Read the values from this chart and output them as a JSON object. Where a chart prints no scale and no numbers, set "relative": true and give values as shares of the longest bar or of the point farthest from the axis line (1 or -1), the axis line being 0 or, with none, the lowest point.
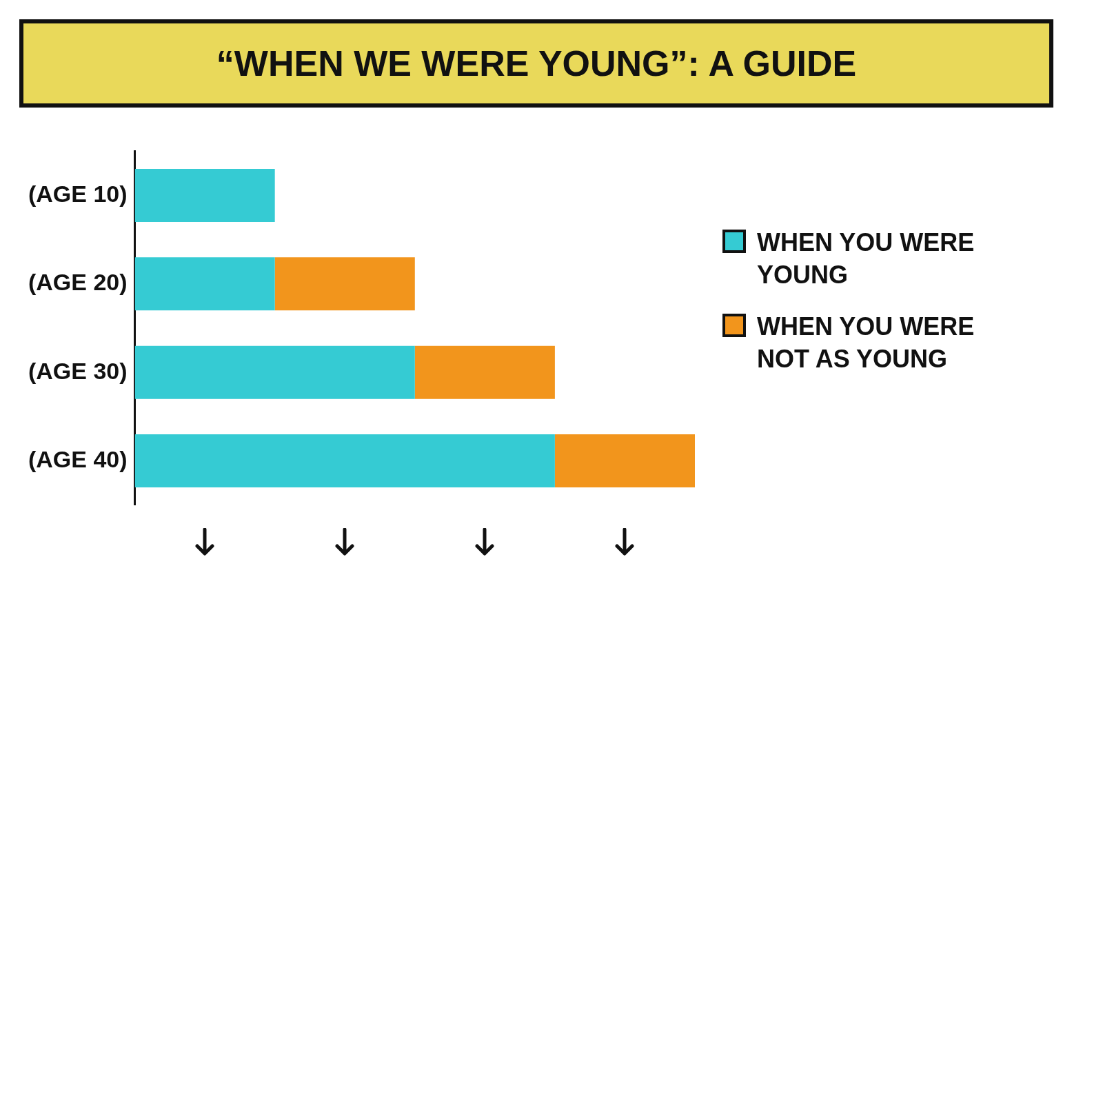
{
  "chart_data": {
    "type": "bar",
    "title": "“WHEN WE WERE YOUNG”: A GUIDE",
    "orientation": "horizontal",
    "stacked": true,
    "relative": true,
    "legend": "right",
    "grid": false,
    "categories": [
      "(AGE 10)",
      "(AGE 20)",
      "(AGE 30)",
      "(AGE 40)"
    ],
    "series": [
      {
        "name": "WHEN YOU WERE YOUNG",
        "color": "#35cbd3",
        "values": [
          0.25,
          0.25,
          0.5,
          0.75
        ]
      },
      {
        "name": "WHEN YOU WERE NOT AS YOUNG",
        "color": "#f2951c",
        "values": [
          null,
          0.25,
          0.25,
          0.25
        ]
      }
    ]
  }
}
